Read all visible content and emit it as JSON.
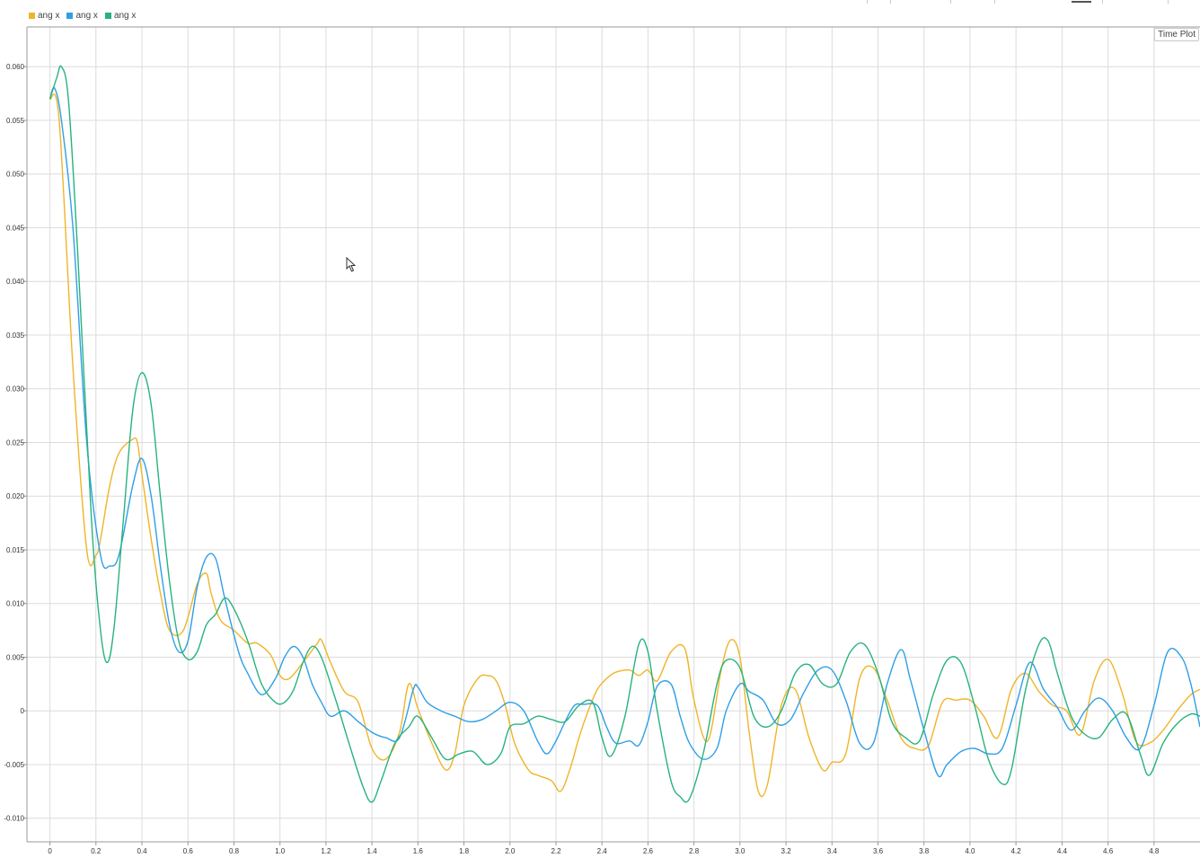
{
  "legend": [
    {
      "label": "ang x",
      "color": "#f0b429"
    },
    {
      "label": "ang x",
      "color": "#2e9fe6"
    },
    {
      "label": "ang x",
      "color": "#27b37c"
    }
  ],
  "panel_label": "Time Plot",
  "chart_data": {
    "type": "line",
    "title": "",
    "xlabel": "",
    "ylabel": "",
    "xlim": [
      -0.1,
      5.0
    ],
    "ylim": [
      -0.0122,
      0.0637
    ],
    "grid": true,
    "legend_position": "top-left",
    "x_ticks": [
      0,
      0.2,
      0.4,
      0.6,
      0.8,
      1.0,
      1.2,
      1.4,
      1.6,
      1.8,
      2.0,
      2.2,
      2.4,
      2.6,
      2.8,
      3.0,
      3.2,
      3.4,
      3.6,
      3.8,
      4.0,
      4.2,
      4.4,
      4.6,
      4.8
    ],
    "x_tick_labels": [
      "0",
      "0.2",
      "0.4",
      "0.6",
      "0.8",
      "1.0",
      "1.2",
      "1.4",
      "1.6",
      "1.8",
      "2.0",
      "2.2",
      "2.4",
      "2.6",
      "2.8",
      "3.0",
      "3.2",
      "3.4",
      "3.6",
      "3.8",
      "4.0",
      "4.2",
      "4.4",
      "4.6",
      "4.8"
    ],
    "y_ticks": [
      0.06,
      0.055,
      0.05,
      0.045,
      0.04,
      0.035,
      0.03,
      0.025,
      0.02,
      0.015,
      0.01,
      0.005,
      0,
      -0.005,
      -0.01
    ],
    "y_tick_labels": [
      "0.060",
      "0.055",
      "0.050",
      "0.045",
      "0.040",
      "0.035",
      "0.030",
      "0.025",
      "0.020",
      "0.015",
      "0.010",
      "0.005",
      "0",
      "-0.005",
      "-0.010"
    ],
    "series": [
      {
        "name": "ang x",
        "color": "#f0b429",
        "x": [
          0,
          0.04,
          0.1,
          0.16,
          0.2,
          0.22,
          0.26,
          0.3,
          0.36,
          0.38,
          0.4,
          0.44,
          0.48,
          0.52,
          0.58,
          0.64,
          0.68,
          0.7,
          0.74,
          0.8,
          0.86,
          0.9,
          0.96,
          1.0,
          1.04,
          1.1,
          1.16,
          1.18,
          1.22,
          1.28,
          1.34,
          1.4,
          1.46,
          1.52,
          1.56,
          1.6,
          1.66,
          1.72,
          1.76,
          1.8,
          1.86,
          1.9,
          1.94,
          1.98,
          2.02,
          2.08,
          2.12,
          2.18,
          2.22,
          2.26,
          2.3,
          2.34,
          2.38,
          2.42,
          2.46,
          2.52,
          2.56,
          2.6,
          2.64,
          2.7,
          2.76,
          2.8,
          2.86,
          2.92,
          2.96,
          3.0,
          3.04,
          3.08,
          3.12,
          3.18,
          3.24,
          3.3,
          3.36,
          3.4,
          3.46,
          3.52,
          3.58,
          3.64,
          3.7,
          3.76,
          3.82,
          3.88,
          3.94,
          4.0,
          4.06,
          4.12,
          4.18,
          4.24,
          4.3,
          4.36,
          4.42,
          4.48,
          4.54,
          4.6,
          4.66,
          4.72,
          4.78,
          4.84,
          4.9,
          4.96,
          5.0
        ],
        "y": [
          0.057,
          0.055,
          0.032,
          0.015,
          0.0145,
          0.016,
          0.021,
          0.024,
          0.0253,
          0.025,
          0.022,
          0.016,
          0.011,
          0.0075,
          0.0075,
          0.0118,
          0.0128,
          0.011,
          0.0085,
          0.0075,
          0.0063,
          0.0063,
          0.0052,
          0.0033,
          0.003,
          0.0045,
          0.0062,
          0.0066,
          0.0045,
          0.0018,
          0.0008,
          -0.0035,
          -0.0045,
          -0.002,
          0.0025,
          0.0002,
          -0.003,
          -0.0055,
          -0.004,
          0.0005,
          0.003,
          0.0033,
          0.0028,
          0.0005,
          -0.003,
          -0.0055,
          -0.006,
          -0.0065,
          -0.0075,
          -0.0055,
          -0.0025,
          0.0,
          0.002,
          0.003,
          0.0036,
          0.0038,
          0.0033,
          0.0038,
          0.0028,
          0.0055,
          0.0058,
          0.001,
          -0.0028,
          0.004,
          0.0066,
          0.005,
          -0.002,
          -0.0075,
          -0.0068,
          0.0005,
          0.002,
          -0.0025,
          -0.0055,
          -0.0048,
          -0.004,
          0.003,
          0.004,
          0.001,
          -0.0025,
          -0.0035,
          -0.0032,
          0.0008,
          0.001,
          0.001,
          -0.0005,
          -0.0025,
          0.002,
          0.0035,
          0.0018,
          0.0005,
          0.0,
          -0.0022,
          0.0028,
          0.0048,
          0.0018,
          -0.0028,
          -0.003,
          -0.0018,
          0.0,
          0.0015,
          0.002
        ]
      },
      {
        "name": "ang x",
        "color": "#2e9fe6",
        "x": [
          0,
          0.02,
          0.05,
          0.1,
          0.16,
          0.22,
          0.26,
          0.3,
          0.36,
          0.4,
          0.44,
          0.48,
          0.52,
          0.56,
          0.6,
          0.64,
          0.68,
          0.72,
          0.76,
          0.82,
          0.86,
          0.92,
          0.98,
          1.02,
          1.06,
          1.1,
          1.14,
          1.18,
          1.22,
          1.28,
          1.34,
          1.4,
          1.46,
          1.52,
          1.58,
          1.6,
          1.64,
          1.7,
          1.76,
          1.82,
          1.88,
          1.94,
          2.0,
          2.06,
          2.12,
          2.16,
          2.2,
          2.24,
          2.28,
          2.32,
          2.38,
          2.42,
          2.46,
          2.52,
          2.56,
          2.6,
          2.64,
          2.7,
          2.74,
          2.78,
          2.84,
          2.9,
          2.94,
          3.0,
          3.04,
          3.1,
          3.16,
          3.22,
          3.28,
          3.34,
          3.4,
          3.46,
          3.52,
          3.58,
          3.64,
          3.7,
          3.74,
          3.8,
          3.86,
          3.9,
          3.96,
          4.02,
          4.08,
          4.14,
          4.2,
          4.26,
          4.32,
          4.38,
          4.44,
          4.5,
          4.56,
          4.62,
          4.68,
          4.74,
          4.8,
          4.86,
          4.92,
          4.96,
          5.0
        ],
        "y": [
          0.057,
          0.058,
          0.055,
          0.045,
          0.025,
          0.0145,
          0.0135,
          0.0145,
          0.021,
          0.0235,
          0.02,
          0.0135,
          0.008,
          0.0055,
          0.0065,
          0.0115,
          0.0143,
          0.0142,
          0.0105,
          0.0055,
          0.0035,
          0.0015,
          0.003,
          0.005,
          0.006,
          0.005,
          0.0025,
          0.0008,
          -0.0005,
          0.0,
          -0.001,
          -0.002,
          -0.0025,
          -0.0025,
          0.002,
          0.0022,
          0.0008,
          0.0,
          -0.0005,
          -0.001,
          -0.0008,
          0.0,
          0.0008,
          0.0,
          -0.0028,
          -0.004,
          -0.0028,
          -0.001,
          0.0005,
          0.0006,
          0.0005,
          -0.0015,
          -0.003,
          -0.0028,
          -0.0032,
          -0.001,
          0.0023,
          0.0025,
          -0.0005,
          -0.003,
          -0.0045,
          -0.0035,
          0.0,
          0.0025,
          0.0018,
          0.001,
          -0.0012,
          -0.0008,
          0.0018,
          0.0038,
          0.0038,
          0.001,
          -0.003,
          -0.003,
          0.0025,
          0.0057,
          0.003,
          -0.0018,
          -0.006,
          -0.005,
          -0.0038,
          -0.0035,
          -0.004,
          -0.0035,
          0.0005,
          0.0045,
          0.002,
          0.0003,
          -0.0018,
          0.0,
          0.0012,
          0.0,
          -0.0025,
          -0.0035,
          0.0005,
          0.0055,
          0.005,
          0.0025,
          -0.0015
        ]
      },
      {
        "name": "ang x",
        "color": "#27b37c",
        "x": [
          0,
          0.03,
          0.05,
          0.08,
          0.12,
          0.18,
          0.22,
          0.25,
          0.28,
          0.32,
          0.36,
          0.4,
          0.44,
          0.48,
          0.52,
          0.56,
          0.6,
          0.64,
          0.68,
          0.72,
          0.76,
          0.8,
          0.86,
          0.92,
          0.98,
          1.02,
          1.06,
          1.1,
          1.14,
          1.18,
          1.24,
          1.3,
          1.36,
          1.4,
          1.44,
          1.5,
          1.56,
          1.6,
          1.66,
          1.72,
          1.78,
          1.84,
          1.9,
          1.96,
          2.0,
          2.06,
          2.12,
          2.18,
          2.24,
          2.3,
          2.36,
          2.4,
          2.44,
          2.5,
          2.56,
          2.6,
          2.64,
          2.7,
          2.74,
          2.78,
          2.84,
          2.9,
          2.94,
          3.0,
          3.06,
          3.12,
          3.18,
          3.24,
          3.3,
          3.36,
          3.42,
          3.48,
          3.54,
          3.6,
          3.66,
          3.72,
          3.78,
          3.84,
          3.9,
          3.96,
          4.02,
          4.08,
          4.14,
          4.18,
          4.24,
          4.3,
          4.34,
          4.38,
          4.44,
          4.5,
          4.56,
          4.62,
          4.68,
          4.74,
          4.78,
          4.84,
          4.9,
          4.96,
          5.0
        ],
        "y": [
          0.057,
          0.059,
          0.06,
          0.057,
          0.043,
          0.018,
          0.0075,
          0.0045,
          0.008,
          0.018,
          0.028,
          0.0315,
          0.0285,
          0.02,
          0.012,
          0.0065,
          0.0048,
          0.0055,
          0.008,
          0.009,
          0.0105,
          0.0095,
          0.0065,
          0.0025,
          0.0008,
          0.0008,
          0.002,
          0.0045,
          0.006,
          0.005,
          0.0012,
          -0.003,
          -0.007,
          -0.0085,
          -0.0065,
          -0.003,
          -0.0015,
          -0.0005,
          -0.0025,
          -0.0045,
          -0.004,
          -0.0038,
          -0.005,
          -0.004,
          -0.0015,
          -0.0012,
          -0.0005,
          -0.0008,
          -0.001,
          0.0005,
          0.0008,
          -0.0025,
          -0.0042,
          -0.0005,
          0.0062,
          0.0055,
          0.0,
          -0.0065,
          -0.008,
          -0.0082,
          -0.004,
          0.0025,
          0.0047,
          0.004,
          -0.0005,
          -0.0015,
          0.0,
          0.0035,
          0.0043,
          0.0025,
          0.0025,
          0.0055,
          0.0062,
          0.0035,
          -0.001,
          -0.0025,
          -0.0028,
          0.0015,
          0.0047,
          0.0045,
          0.0005,
          -0.0045,
          -0.0068,
          -0.0055,
          0.0018,
          0.0062,
          0.0065,
          0.0035,
          -0.0005,
          -0.0022,
          -0.0025,
          -0.0008,
          -0.0003,
          -0.004,
          -0.006,
          -0.003,
          -0.0012,
          -0.0003,
          -0.0005
        ]
      }
    ]
  }
}
